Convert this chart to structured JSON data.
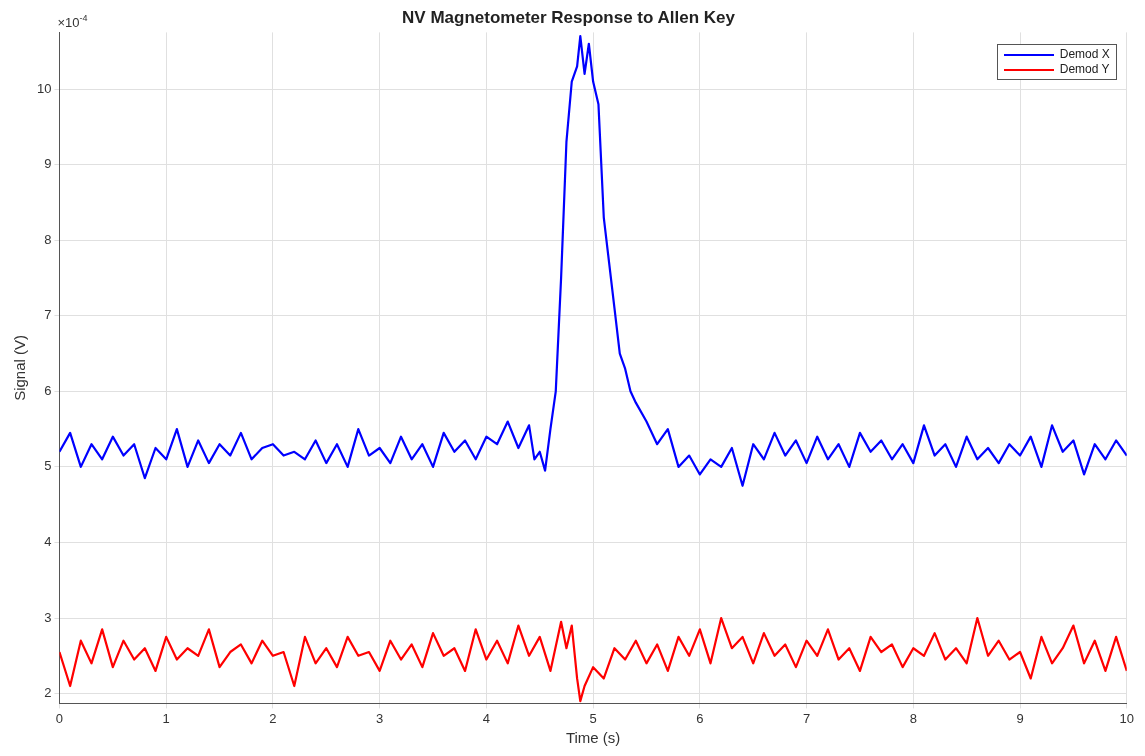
{
  "chart_data": {
    "type": "line",
    "title": "NV Magnetometer Response to Allen Key",
    "xlabel": "Time (s)",
    "ylabel": "Signal (V)",
    "annotations": [
      "×10$^{-4}$"
    ],
    "xlim": [
      0,
      10
    ],
    "ylim": [
      1.87,
      10.75
    ],
    "xticks": [
      0,
      1,
      2,
      3,
      4,
      5,
      6,
      7,
      8,
      9,
      10
    ],
    "yticks": [
      2,
      3,
      4,
      5,
      6,
      7,
      8,
      9,
      10
    ],
    "grid": true,
    "legend": "top right",
    "marker": "none",
    "line_style": "solid",
    "series": [
      {
        "name": "Demod X",
        "color": "#0000ff",
        "x": [
          0,
          0.1,
          0.2,
          0.3,
          0.4,
          0.5,
          0.6,
          0.7,
          0.8,
          0.9,
          1.0,
          1.1,
          1.2,
          1.3,
          1.4,
          1.5,
          1.6,
          1.7,
          1.8,
          1.9,
          2.0,
          2.1,
          2.2,
          2.3,
          2.4,
          2.5,
          2.6,
          2.7,
          2.8,
          2.9,
          3.0,
          3.1,
          3.2,
          3.3,
          3.4,
          3.5,
          3.6,
          3.7,
          3.8,
          3.9,
          4.0,
          4.1,
          4.2,
          4.3,
          4.4,
          4.45,
          4.5,
          4.55,
          4.6,
          4.65,
          4.7,
          4.75,
          4.8,
          4.85,
          4.88,
          4.92,
          4.96,
          5.0,
          5.05,
          5.1,
          5.15,
          5.2,
          5.25,
          5.3,
          5.35,
          5.4,
          5.5,
          5.6,
          5.7,
          5.8,
          5.9,
          6.0,
          6.1,
          6.2,
          6.3,
          6.4,
          6.5,
          6.6,
          6.7,
          6.8,
          6.9,
          7.0,
          7.1,
          7.2,
          7.3,
          7.4,
          7.5,
          7.6,
          7.7,
          7.8,
          7.9,
          8.0,
          8.1,
          8.2,
          8.3,
          8.4,
          8.5,
          8.6,
          8.7,
          8.8,
          8.9,
          9.0,
          9.1,
          9.2,
          9.3,
          9.4,
          9.5,
          9.6,
          9.7,
          9.8,
          9.9,
          10.0
        ],
        "values": [
          5.2,
          5.45,
          5.0,
          5.3,
          5.1,
          5.4,
          5.15,
          5.3,
          4.85,
          5.25,
          5.1,
          5.5,
          5.0,
          5.35,
          5.05,
          5.3,
          5.15,
          5.45,
          5.1,
          5.25,
          5.3,
          5.15,
          5.2,
          5.1,
          5.35,
          5.05,
          5.3,
          5.0,
          5.5,
          5.15,
          5.25,
          5.05,
          5.4,
          5.1,
          5.3,
          5.0,
          5.45,
          5.2,
          5.35,
          5.1,
          5.4,
          5.3,
          5.6,
          5.25,
          5.55,
          5.1,
          5.2,
          4.95,
          5.5,
          6.0,
          7.5,
          9.3,
          10.1,
          10.3,
          10.7,
          10.2,
          10.6,
          10.1,
          9.8,
          8.3,
          7.7,
          7.1,
          6.5,
          6.3,
          6.0,
          5.85,
          5.6,
          5.3,
          5.5,
          5.0,
          5.15,
          4.9,
          5.1,
          5.0,
          5.25,
          4.75,
          5.3,
          5.1,
          5.45,
          5.15,
          5.35,
          5.05,
          5.4,
          5.1,
          5.3,
          5.0,
          5.45,
          5.2,
          5.35,
          5.1,
          5.3,
          5.05,
          5.55,
          5.15,
          5.3,
          5.0,
          5.4,
          5.1,
          5.25,
          5.05,
          5.3,
          5.15,
          5.4,
          5.0,
          5.55,
          5.2,
          5.35,
          4.9,
          5.3,
          5.1,
          5.35,
          5.15
        ]
      },
      {
        "name": "Demod Y",
        "color": "#ff0000",
        "x": [
          0,
          0.1,
          0.2,
          0.3,
          0.4,
          0.5,
          0.6,
          0.7,
          0.8,
          0.9,
          1.0,
          1.1,
          1.2,
          1.3,
          1.4,
          1.5,
          1.6,
          1.7,
          1.8,
          1.9,
          2.0,
          2.1,
          2.2,
          2.3,
          2.4,
          2.5,
          2.6,
          2.7,
          2.8,
          2.9,
          3.0,
          3.1,
          3.2,
          3.3,
          3.4,
          3.5,
          3.6,
          3.7,
          3.8,
          3.9,
          4.0,
          4.1,
          4.2,
          4.3,
          4.4,
          4.5,
          4.6,
          4.7,
          4.75,
          4.8,
          4.85,
          4.88,
          4.92,
          5.0,
          5.1,
          5.2,
          5.3,
          5.4,
          5.5,
          5.6,
          5.7,
          5.8,
          5.9,
          6.0,
          6.1,
          6.2,
          6.3,
          6.4,
          6.5,
          6.6,
          6.7,
          6.8,
          6.9,
          7.0,
          7.1,
          7.2,
          7.3,
          7.4,
          7.5,
          7.6,
          7.7,
          7.8,
          7.9,
          8.0,
          8.1,
          8.2,
          8.3,
          8.4,
          8.5,
          8.6,
          8.7,
          8.8,
          8.9,
          9.0,
          9.1,
          9.2,
          9.3,
          9.4,
          9.5,
          9.6,
          9.7,
          9.8,
          9.9,
          10.0
        ],
        "values": [
          2.55,
          2.1,
          2.7,
          2.4,
          2.85,
          2.35,
          2.7,
          2.45,
          2.6,
          2.3,
          2.75,
          2.45,
          2.6,
          2.5,
          2.85,
          2.35,
          2.55,
          2.65,
          2.4,
          2.7,
          2.5,
          2.55,
          2.1,
          2.75,
          2.4,
          2.6,
          2.35,
          2.75,
          2.5,
          2.55,
          2.3,
          2.7,
          2.45,
          2.65,
          2.35,
          2.8,
          2.5,
          2.6,
          2.3,
          2.85,
          2.45,
          2.7,
          2.4,
          2.9,
          2.5,
          2.75,
          2.3,
          2.95,
          2.6,
          2.9,
          2.2,
          1.9,
          2.1,
          2.35,
          2.2,
          2.6,
          2.45,
          2.7,
          2.4,
          2.65,
          2.3,
          2.75,
          2.5,
          2.85,
          2.4,
          3.0,
          2.6,
          2.75,
          2.4,
          2.8,
          2.5,
          2.65,
          2.35,
          2.7,
          2.5,
          2.85,
          2.45,
          2.6,
          2.3,
          2.75,
          2.55,
          2.65,
          2.35,
          2.6,
          2.5,
          2.8,
          2.45,
          2.6,
          2.4,
          3.0,
          2.5,
          2.7,
          2.45,
          2.55,
          2.2,
          2.75,
          2.4,
          2.6,
          2.9,
          2.4,
          2.7,
          2.3,
          2.75,
          2.3
        ]
      }
    ]
  }
}
